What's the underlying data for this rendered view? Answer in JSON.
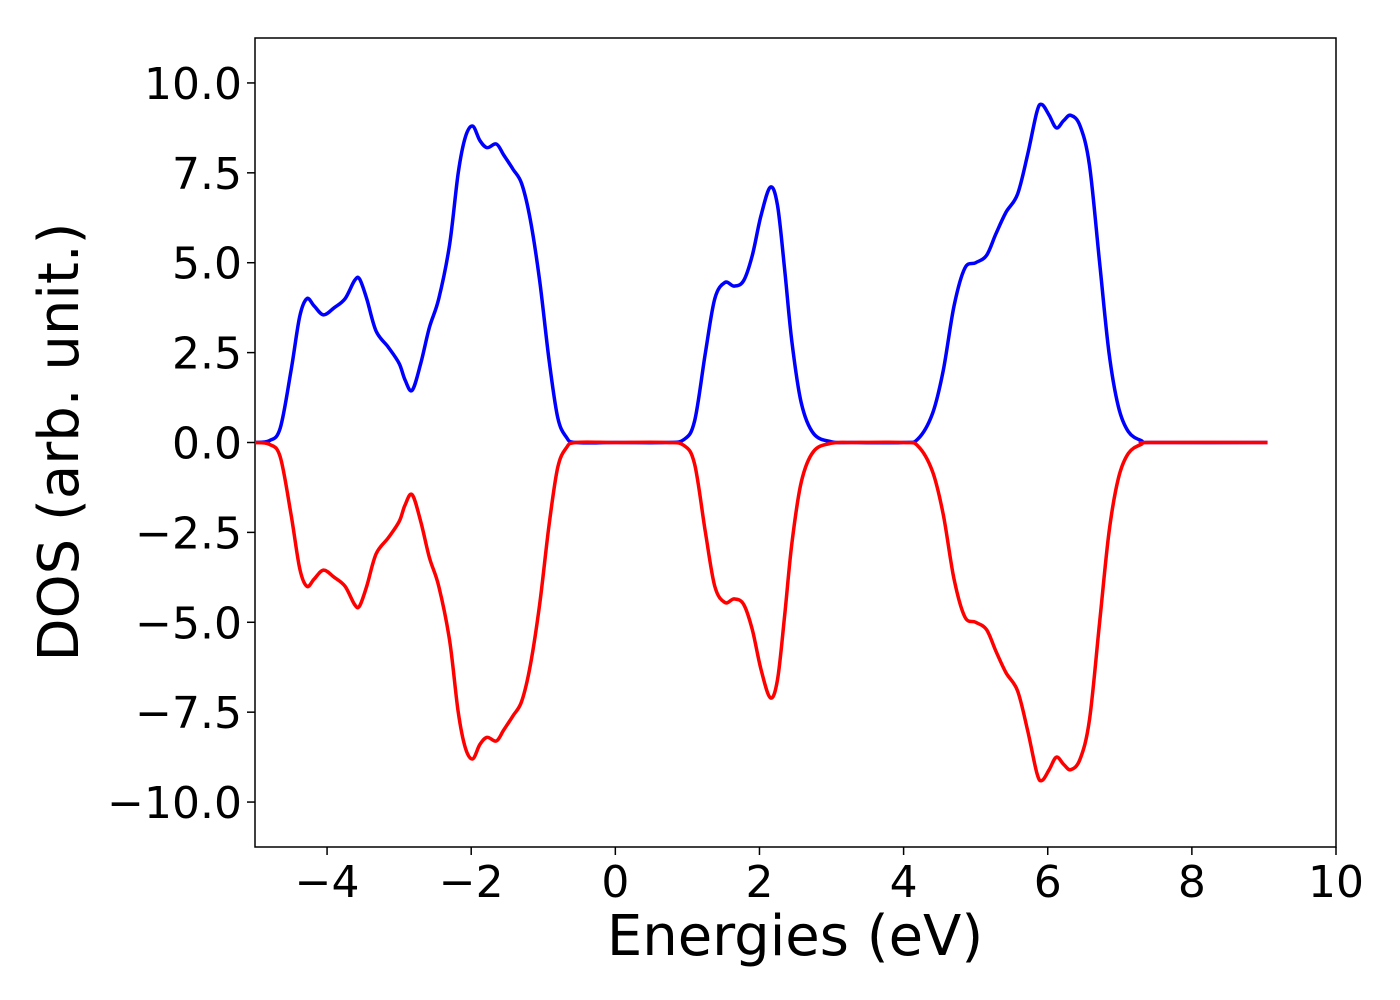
{
  "chart_data": {
    "type": "line",
    "title": "",
    "xlabel": "Energies (eV)",
    "ylabel": "DOS (arb. unit.)",
    "xlim": [
      -5,
      10
    ],
    "ylim": [
      -11.25,
      11.25
    ],
    "x_ticks": [
      -4,
      -2,
      0,
      2,
      4,
      6,
      8,
      10
    ],
    "x_tick_labels": [
      "−4",
      "−2",
      "0",
      "2",
      "4",
      "6",
      "8",
      "10"
    ],
    "y_ticks": [
      10,
      7.5,
      5,
      2.5,
      0,
      -2.5,
      -5,
      -7.5,
      -10
    ],
    "y_tick_labels": [
      "10.0",
      "7.5",
      "5.0",
      "2.5",
      "0.0",
      "−2.5",
      "−5.0",
      "−7.5",
      "−10.0"
    ],
    "grid": false,
    "legend": "none",
    "series": [
      {
        "color": "#0000ff",
        "points": [
          [
            -5.0,
            0.0
          ],
          [
            -4.8,
            0.05
          ],
          [
            -4.65,
            0.4
          ],
          [
            -4.5,
            2.0
          ],
          [
            -4.38,
            3.5
          ],
          [
            -4.28,
            4.0
          ],
          [
            -4.18,
            3.8
          ],
          [
            -4.05,
            3.55
          ],
          [
            -3.9,
            3.75
          ],
          [
            -3.75,
            4.0
          ],
          [
            -3.62,
            4.5
          ],
          [
            -3.55,
            4.55
          ],
          [
            -3.45,
            4.0
          ],
          [
            -3.32,
            3.1
          ],
          [
            -3.15,
            2.65
          ],
          [
            -3.0,
            2.2
          ],
          [
            -2.92,
            1.75
          ],
          [
            -2.82,
            1.45
          ],
          [
            -2.7,
            2.2
          ],
          [
            -2.58,
            3.2
          ],
          [
            -2.45,
            4.0
          ],
          [
            -2.3,
            5.5
          ],
          [
            -2.18,
            7.5
          ],
          [
            -2.08,
            8.5
          ],
          [
            -1.98,
            8.8
          ],
          [
            -1.88,
            8.4
          ],
          [
            -1.78,
            8.2
          ],
          [
            -1.65,
            8.3
          ],
          [
            -1.55,
            8.0
          ],
          [
            -1.42,
            7.6
          ],
          [
            -1.3,
            7.2
          ],
          [
            -1.18,
            6.2
          ],
          [
            -1.05,
            4.5
          ],
          [
            -0.92,
            2.3
          ],
          [
            -0.8,
            0.7
          ],
          [
            -0.68,
            0.15
          ],
          [
            -0.55,
            0.0
          ],
          [
            0.0,
            0.0
          ],
          [
            0.7,
            0.0
          ],
          [
            0.95,
            0.08
          ],
          [
            1.1,
            0.6
          ],
          [
            1.25,
            2.5
          ],
          [
            1.38,
            4.0
          ],
          [
            1.52,
            4.45
          ],
          [
            1.65,
            4.35
          ],
          [
            1.78,
            4.5
          ],
          [
            1.9,
            5.2
          ],
          [
            2.02,
            6.3
          ],
          [
            2.15,
            7.1
          ],
          [
            2.25,
            6.6
          ],
          [
            2.35,
            4.8
          ],
          [
            2.45,
            2.8
          ],
          [
            2.58,
            1.1
          ],
          [
            2.75,
            0.25
          ],
          [
            3.0,
            0.02
          ],
          [
            3.3,
            0.0
          ],
          [
            4.0,
            0.0
          ],
          [
            4.2,
            0.1
          ],
          [
            4.4,
            0.8
          ],
          [
            4.55,
            2.0
          ],
          [
            4.7,
            3.8
          ],
          [
            4.85,
            4.85
          ],
          [
            5.0,
            5.0
          ],
          [
            5.15,
            5.2
          ],
          [
            5.28,
            5.8
          ],
          [
            5.42,
            6.4
          ],
          [
            5.58,
            6.9
          ],
          [
            5.72,
            8.0
          ],
          [
            5.85,
            9.2
          ],
          [
            5.92,
            9.4
          ],
          [
            6.02,
            9.1
          ],
          [
            6.12,
            8.75
          ],
          [
            6.22,
            8.95
          ],
          [
            6.32,
            9.1
          ],
          [
            6.45,
            8.8
          ],
          [
            6.58,
            7.7
          ],
          [
            6.72,
            5.0
          ],
          [
            6.85,
            2.5
          ],
          [
            6.98,
            1.0
          ],
          [
            7.12,
            0.3
          ],
          [
            7.3,
            0.05
          ],
          [
            7.45,
            0.0
          ],
          [
            9.05,
            0.0
          ]
        ]
      },
      {
        "color": "#ff0000",
        "points": [
          [
            -5.0,
            0.0
          ],
          [
            -4.8,
            -0.05
          ],
          [
            -4.65,
            -0.4
          ],
          [
            -4.5,
            -2.0
          ],
          [
            -4.38,
            -3.5
          ],
          [
            -4.28,
            -4.0
          ],
          [
            -4.18,
            -3.8
          ],
          [
            -4.05,
            -3.55
          ],
          [
            -3.9,
            -3.75
          ],
          [
            -3.75,
            -4.0
          ],
          [
            -3.62,
            -4.5
          ],
          [
            -3.55,
            -4.55
          ],
          [
            -3.45,
            -4.0
          ],
          [
            -3.32,
            -3.1
          ],
          [
            -3.15,
            -2.65
          ],
          [
            -3.0,
            -2.2
          ],
          [
            -2.92,
            -1.75
          ],
          [
            -2.82,
            -1.45
          ],
          [
            -2.7,
            -2.2
          ],
          [
            -2.58,
            -3.2
          ],
          [
            -2.45,
            -4.0
          ],
          [
            -2.3,
            -5.5
          ],
          [
            -2.18,
            -7.5
          ],
          [
            -2.08,
            -8.5
          ],
          [
            -1.98,
            -8.8
          ],
          [
            -1.88,
            -8.4
          ],
          [
            -1.78,
            -8.2
          ],
          [
            -1.65,
            -8.3
          ],
          [
            -1.55,
            -8.0
          ],
          [
            -1.42,
            -7.6
          ],
          [
            -1.3,
            -7.2
          ],
          [
            -1.18,
            -6.2
          ],
          [
            -1.05,
            -4.5
          ],
          [
            -0.92,
            -2.3
          ],
          [
            -0.8,
            -0.7
          ],
          [
            -0.68,
            -0.15
          ],
          [
            -0.55,
            0.0
          ],
          [
            0.0,
            0.0
          ],
          [
            0.7,
            0.0
          ],
          [
            0.95,
            -0.08
          ],
          [
            1.1,
            -0.6
          ],
          [
            1.25,
            -2.5
          ],
          [
            1.38,
            -4.0
          ],
          [
            1.52,
            -4.45
          ],
          [
            1.65,
            -4.35
          ],
          [
            1.78,
            -4.5
          ],
          [
            1.9,
            -5.2
          ],
          [
            2.02,
            -6.3
          ],
          [
            2.15,
            -7.1
          ],
          [
            2.25,
            -6.6
          ],
          [
            2.35,
            -4.8
          ],
          [
            2.45,
            -2.8
          ],
          [
            2.58,
            -1.1
          ],
          [
            2.75,
            -0.25
          ],
          [
            3.0,
            -0.02
          ],
          [
            3.3,
            0.0
          ],
          [
            4.0,
            0.0
          ],
          [
            4.2,
            -0.1
          ],
          [
            4.4,
            -0.8
          ],
          [
            4.55,
            -2.0
          ],
          [
            4.7,
            -3.8
          ],
          [
            4.85,
            -4.85
          ],
          [
            5.0,
            -5.0
          ],
          [
            5.15,
            -5.2
          ],
          [
            5.28,
            -5.8
          ],
          [
            5.42,
            -6.4
          ],
          [
            5.58,
            -6.9
          ],
          [
            5.72,
            -8.0
          ],
          [
            5.85,
            -9.2
          ],
          [
            5.92,
            -9.4
          ],
          [
            6.02,
            -9.1
          ],
          [
            6.12,
            -8.75
          ],
          [
            6.22,
            -8.95
          ],
          [
            6.32,
            -9.1
          ],
          [
            6.45,
            -8.8
          ],
          [
            6.58,
            -7.7
          ],
          [
            6.72,
            -5.0
          ],
          [
            6.85,
            -2.5
          ],
          [
            6.98,
            -1.0
          ],
          [
            7.12,
            -0.3
          ],
          [
            7.3,
            -0.05
          ],
          [
            7.45,
            0.0
          ],
          [
            9.05,
            0.0
          ]
        ]
      }
    ]
  }
}
